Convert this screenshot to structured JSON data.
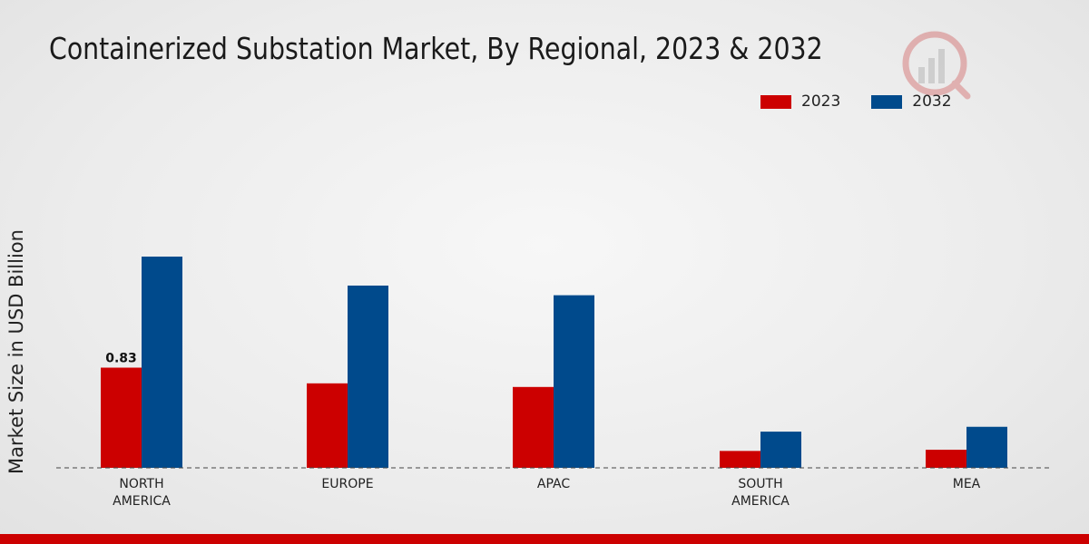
{
  "chart_data": {
    "type": "bar",
    "title": "Containerized Substation Market, By Regional, 2023 & 2032",
    "xlabel": "",
    "ylabel": "Market Size in USD Billion",
    "categories": [
      [
        "NORTH",
        "AMERICA"
      ],
      [
        "EUROPE"
      ],
      [
        "APAC"
      ],
      [
        "SOUTH",
        "AMERICA"
      ],
      [
        "MEA"
      ]
    ],
    "series": [
      {
        "name": "2023",
        "color": "#cc0000",
        "values": [
          0.83,
          0.7,
          0.67,
          0.14,
          0.15
        ]
      },
      {
        "name": "2032",
        "color": "#004a8c",
        "values": [
          1.75,
          1.51,
          1.43,
          0.3,
          0.34
        ]
      }
    ],
    "data_labels": [
      {
        "series": 0,
        "index": 0,
        "text": "0.83"
      }
    ],
    "ylim": [
      0,
      3.2
    ],
    "grid": false,
    "legend_position": "top-right"
  }
}
